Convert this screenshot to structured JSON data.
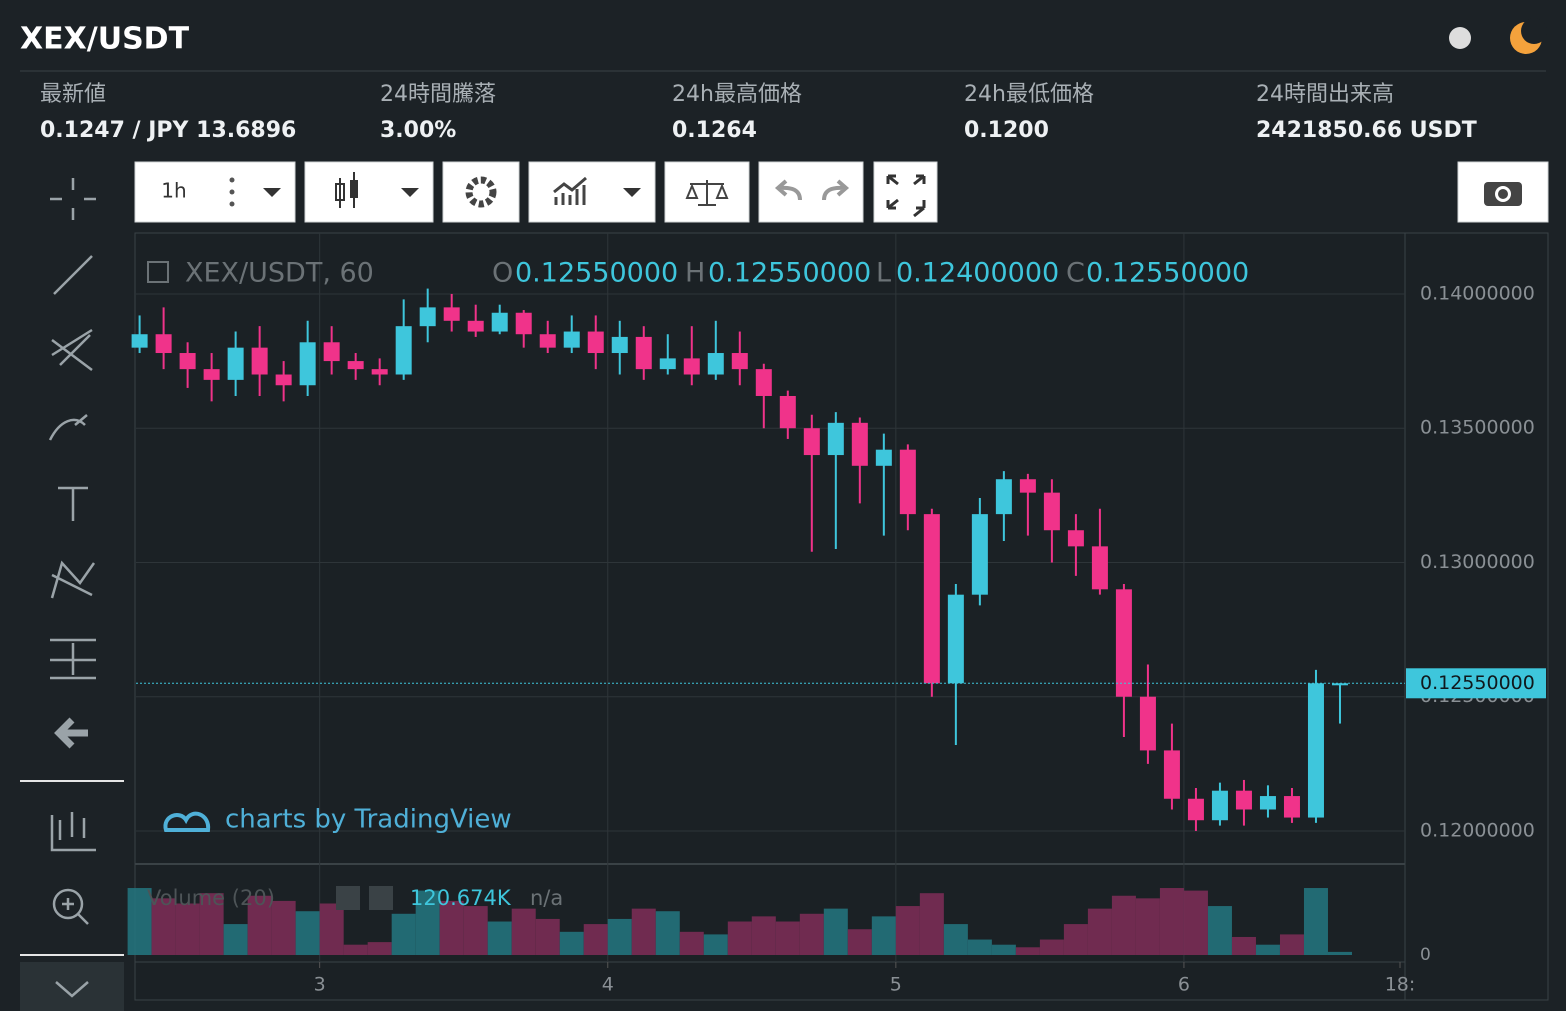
{
  "header": {
    "title": "XEX/USDT"
  },
  "stats": [
    {
      "label": "最新値",
      "value": "0.1247 / JPY 13.6896"
    },
    {
      "label": "24時間騰落",
      "value": "3.00%"
    },
    {
      "label": "24h最高価格",
      "value": "0.1264"
    },
    {
      "label": "24h最低価格",
      "value": "0.1200"
    },
    {
      "label": "24時間出来高",
      "value": "2421850.66 USDT"
    }
  ],
  "toolbar": {
    "interval": "1h"
  },
  "legend": {
    "symbol": "XEX/USDT, 60",
    "items": [
      {
        "key": "O",
        "label": "0.12550000"
      },
      {
        "key": "H",
        "label": "0.12550000"
      },
      {
        "key": "L",
        "label": "0.12400000"
      },
      {
        "key": "C",
        "label": "0.12550000"
      }
    ]
  },
  "watermark": "charts by TradingView",
  "volume_legend": {
    "title": "Volume (20)",
    "value": "120.674K",
    "extra": "n/a"
  },
  "chart_data": {
    "type": "candlestick",
    "x": [
      -15,
      -13,
      -11,
      -9,
      -7,
      -5,
      -3,
      -1,
      1,
      3,
      5,
      7,
      9,
      11,
      13,
      15,
      17,
      19,
      21,
      23,
      25,
      27,
      29,
      31,
      33,
      35,
      37,
      39,
      41,
      43,
      45,
      47,
      49,
      51,
      53,
      55,
      57,
      59,
      61,
      63,
      65,
      67,
      69,
      71,
      73,
      75,
      77,
      79,
      81,
      83,
      85
    ],
    "open": [
      0.138,
      0.1385,
      0.1378,
      0.1372,
      0.1368,
      0.138,
      0.137,
      0.1366,
      0.1382,
      0.1375,
      0.1372,
      0.137,
      0.1388,
      0.1395,
      0.139,
      0.1386,
      0.1393,
      0.1385,
      0.138,
      0.1386,
      0.1378,
      0.1384,
      0.1372,
      0.1376,
      0.137,
      0.1378,
      0.1372,
      0.1362,
      0.135,
      0.134,
      0.1352,
      0.1336,
      0.1342,
      0.1318,
      0.1255,
      0.1288,
      0.1318,
      0.1331,
      0.1326,
      0.1312,
      0.1306,
      0.129,
      0.125,
      0.123,
      0.1212,
      0.1204,
      0.1215,
      0.1208,
      0.1213,
      0.1205,
      0.1255
    ],
    "high": [
      0.1392,
      0.1395,
      0.1382,
      0.1378,
      0.1386,
      0.1388,
      0.1375,
      0.139,
      0.1388,
      0.1378,
      0.1376,
      0.1398,
      0.1402,
      0.14,
      0.1396,
      0.1396,
      0.1394,
      0.139,
      0.1392,
      0.1392,
      0.139,
      0.1388,
      0.1385,
      0.1388,
      0.139,
      0.1386,
      0.1374,
      0.1364,
      0.1355,
      0.1356,
      0.1354,
      0.1348,
      0.1344,
      0.132,
      0.1292,
      0.1324,
      0.1334,
      0.1333,
      0.1331,
      0.1318,
      0.132,
      0.1292,
      0.1262,
      0.124,
      0.1216,
      0.1218,
      0.1219,
      0.1217,
      0.1216,
      0.126,
      0.1255
    ],
    "low": [
      0.1378,
      0.1372,
      0.1365,
      0.136,
      0.1362,
      0.1362,
      0.136,
      0.1362,
      0.137,
      0.1368,
      0.1366,
      0.1368,
      0.1382,
      0.1386,
      0.1384,
      0.1385,
      0.138,
      0.1378,
      0.1378,
      0.1372,
      0.137,
      0.1368,
      0.137,
      0.1366,
      0.1368,
      0.1366,
      0.135,
      0.1346,
      0.1304,
      0.1305,
      0.1322,
      0.131,
      0.1312,
      0.125,
      0.1232,
      0.1284,
      0.1308,
      0.131,
      0.13,
      0.1295,
      0.1288,
      0.1235,
      0.1225,
      0.1208,
      0.12,
      0.1202,
      0.1202,
      0.1205,
      0.1203,
      0.1203,
      0.124
    ],
    "close": [
      0.1385,
      0.1378,
      0.1372,
      0.1368,
      0.138,
      0.137,
      0.1366,
      0.1382,
      0.1375,
      0.1372,
      0.137,
      0.1388,
      0.1395,
      0.139,
      0.1386,
      0.1393,
      0.1385,
      0.138,
      0.1386,
      0.1378,
      0.1384,
      0.1372,
      0.1376,
      0.137,
      0.1378,
      0.1372,
      0.1362,
      0.135,
      0.134,
      0.1352,
      0.1336,
      0.1342,
      0.1318,
      0.1255,
      0.1288,
      0.1318,
      0.1331,
      0.1326,
      0.1312,
      0.1306,
      0.129,
      0.125,
      0.123,
      0.1212,
      0.1204,
      0.1215,
      0.1208,
      0.1213,
      0.1205,
      0.1255,
      0.1255
    ],
    "volume": [
      2600000,
      2200000,
      2000000,
      2400000,
      1200000,
      2300000,
      2100000,
      1700000,
      2000000,
      400000,
      500000,
      1600000,
      2500000,
      2100000,
      1900000,
      1300000,
      1800000,
      1400000,
      900000,
      1200000,
      1400000,
      1800000,
      1700000,
      900000,
      800000,
      1300000,
      1500000,
      1300000,
      1600000,
      1800000,
      1000000,
      1500000,
      1900000,
      2400000,
      1200000,
      600000,
      400000,
      300000,
      600000,
      1200000,
      1800000,
      2300000,
      2200000,
      2600000,
      2500000,
      1900000,
      700000,
      400000,
      800000,
      2600000,
      120674
    ],
    "up_color": "#3ec6dc",
    "down_color": "#f0338a",
    "volume_up_color": "#23727c",
    "volume_down_color": "#7a2c55",
    "xlim": [
      -15.3,
      90
    ],
    "xticks": [
      {
        "value": 0,
        "label": "3"
      },
      {
        "value": 24,
        "label": "4"
      },
      {
        "value": 48,
        "label": "5"
      },
      {
        "value": 72,
        "label": "6"
      },
      {
        "value": 90,
        "label": "18:"
      }
    ],
    "ylim": [
      0.11877,
      0.14227
    ],
    "yticks": [
      {
        "value": 0.14,
        "label": "0.14000000"
      },
      {
        "value": 0.135,
        "label": "0.13500000"
      },
      {
        "value": 0.13,
        "label": "0.13000000"
      },
      {
        "value": 0.125,
        "label": "0.12500000"
      },
      {
        "value": 0.12,
        "label": "0.12000000"
      }
    ],
    "y2lim": [
      0,
      3300000
    ],
    "y2ticks": [
      0
    ],
    "last_price": {
      "value": 0.1255,
      "label": "0.12550000"
    },
    "grid": true
  }
}
